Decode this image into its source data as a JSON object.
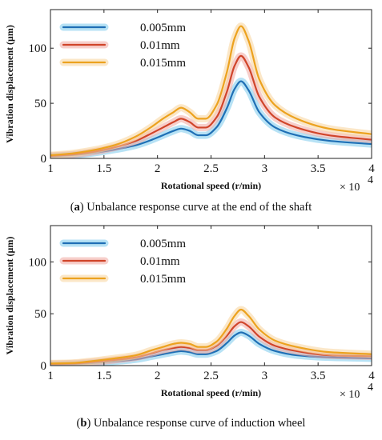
{
  "chart_data": [
    {
      "panel": "a",
      "type": "line",
      "caption_letter": "a",
      "caption_text": " Unbalance response curve at the end of the shaft",
      "xlabel": "Rotational speed (r/min)",
      "ylabel": "Vibration displacement (μm)",
      "x_multiplier": "× 10",
      "x_multiplier_exp": "4",
      "xlim": [
        1,
        4
      ],
      "ylim": [
        0,
        135
      ],
      "xticks": [
        1,
        1.5,
        2,
        2.5,
        3,
        3.5,
        4
      ],
      "xtick_labels": [
        "1",
        "1.5",
        "2",
        "2.5",
        "3",
        "3.5",
        "4"
      ],
      "yticks": [
        0,
        50,
        100
      ],
      "ytick_labels": [
        "0",
        "50",
        "100"
      ],
      "legend_position": "top-left",
      "grid": false,
      "x": [
        0.95,
        1.2,
        1.4,
        1.6,
        1.8,
        1.95,
        2.05,
        2.15,
        2.22,
        2.3,
        2.38,
        2.45,
        2.55,
        2.65,
        2.72,
        2.78,
        2.85,
        2.95,
        3.1,
        3.3,
        3.6,
        4.0
      ],
      "series": [
        {
          "name": "0.005mm",
          "color": "#1f6fb5",
          "glow": "#7ccbec",
          "values": [
            1.5,
            3,
            5,
            8,
            12,
            17,
            21,
            25,
            27,
            25,
            21,
            21,
            28,
            46,
            63,
            70,
            62,
            42,
            28,
            21,
            16,
            13
          ]
        },
        {
          "name": "0.01mm",
          "color": "#d0452a",
          "glow": "#f0a8a0",
          "values": [
            2,
            3.5,
            6,
            10,
            16,
            23,
            28,
            33,
            36,
            33,
            28,
            28,
            37,
            61,
            84,
            93,
            83,
            56,
            37,
            28,
            21,
            17
          ]
        },
        {
          "name": "0.015mm",
          "color": "#eca21f",
          "glow": "#f8d49a",
          "values": [
            2.5,
            4.5,
            7.5,
            12,
            20,
            29,
            36,
            42,
            46,
            42,
            36,
            36,
            48,
            79,
            109,
            120,
            107,
            72,
            48,
            36,
            27,
            22
          ]
        }
      ]
    },
    {
      "panel": "b",
      "type": "line",
      "caption_letter": "b",
      "caption_text": " Unbalance response curve of induction wheel",
      "xlabel": "Rotational speed (r/min)",
      "ylabel": "Vibration displacement (μm)",
      "x_multiplier": "× 10",
      "x_multiplier_exp": "4",
      "xlim": [
        1,
        4
      ],
      "ylim": [
        0,
        135
      ],
      "xticks": [
        1,
        1.5,
        2,
        2.5,
        3,
        3.5,
        4
      ],
      "xtick_labels": [
        "1",
        "1.5",
        "2",
        "2.5",
        "3",
        "3.5",
        "4"
      ],
      "yticks": [
        0,
        50,
        100
      ],
      "ytick_labels": [
        "0",
        "50",
        "100"
      ],
      "legend_position": "top-left",
      "grid": false,
      "x": [
        0.95,
        1.2,
        1.4,
        1.6,
        1.8,
        1.95,
        2.05,
        2.15,
        2.22,
        2.3,
        2.38,
        2.45,
        2.55,
        2.65,
        2.72,
        2.78,
        2.85,
        2.95,
        3.1,
        3.3,
        3.6,
        4.0
      ],
      "series": [
        {
          "name": "0.005mm",
          "color": "#1f6fb5",
          "glow": "#7ccbec",
          "values": [
            1,
            1.5,
            2.5,
            4,
            6,
            9,
            11,
            13,
            14,
            13,
            11,
            11,
            14,
            22,
            29,
            32,
            29,
            21,
            14,
            10,
            8,
            7
          ]
        },
        {
          "name": "0.01mm",
          "color": "#d0452a",
          "glow": "#f0a8a0",
          "values": [
            1.5,
            2,
            3.5,
            5.5,
            8,
            12,
            15,
            17,
            18,
            17,
            15,
            15,
            19,
            29,
            38,
            42,
            38,
            28,
            19,
            14,
            10,
            9
          ]
        },
        {
          "name": "0.015mm",
          "color": "#eca21f",
          "glow": "#f8d49a",
          "values": [
            2,
            2.5,
            4.5,
            7,
            10,
            15,
            18,
            21,
            22,
            21,
            18,
            18,
            23,
            36,
            48,
            54,
            48,
            35,
            24,
            18,
            13,
            11
          ]
        }
      ]
    }
  ]
}
